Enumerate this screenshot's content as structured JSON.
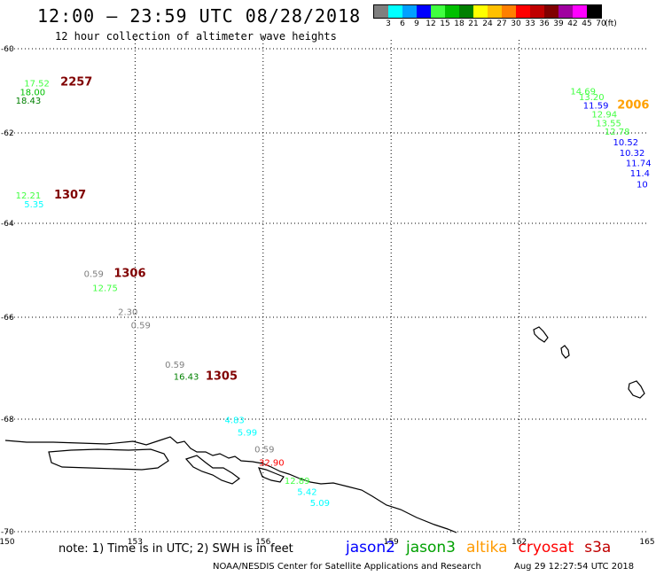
{
  "header": {
    "title": "12:00 — 23:59 UTC 08/28/2018",
    "subtitle": "12 hour collection of altimeter wave heights"
  },
  "legend": {
    "unit": "(ft)",
    "items": [
      {
        "label": "3",
        "color": "#7f7f7f"
      },
      {
        "label": "6",
        "color": "#00ffff"
      },
      {
        "label": "9",
        "color": "#00a0ff"
      },
      {
        "label": "12",
        "color": "#0000ff"
      },
      {
        "label": "15",
        "color": "#40ff40"
      },
      {
        "label": "18",
        "color": "#00c000"
      },
      {
        "label": "21",
        "color": "#008000"
      },
      {
        "label": "24",
        "color": "#ffff00"
      },
      {
        "label": "27",
        "color": "#ffc000"
      },
      {
        "label": "30",
        "color": "#ff8000"
      },
      {
        "label": "33",
        "color": "#ff0000"
      },
      {
        "label": "36",
        "color": "#c00000"
      },
      {
        "label": "39",
        "color": "#800000"
      },
      {
        "label": "42",
        "color": "#a000a0"
      },
      {
        "label": "45",
        "color": "#ff00ff"
      },
      {
        "label": "70",
        "color": "#000000"
      }
    ]
  },
  "axes": {
    "lon_ticks": [
      "150",
      "153",
      "156",
      "159",
      "162",
      "165"
    ],
    "lat_ticks": [
      "-60",
      "-62",
      "-64",
      "-66",
      "-68",
      "-70"
    ]
  },
  "pass_ids": [
    {
      "text": "2257",
      "color": "#800000",
      "lon": 151.25,
      "lat": -60.02
    },
    {
      "text": "1307",
      "color": "#800000",
      "lon": 151.1,
      "lat": -62.55
    },
    {
      "text": "1306",
      "color": "#800000",
      "lon": 152.5,
      "lat": -64.3
    },
    {
      "text": "1305",
      "color": "#800000",
      "lon": 154.65,
      "lat": -66.6
    },
    {
      "text": "2006",
      "color": "#ffa000",
      "lon": 164.3,
      "lat": -60.54
    }
  ],
  "wave_labels": [
    {
      "text": "17.52",
      "color": "#40ff40",
      "lon": 150.4,
      "lat": -60.04
    },
    {
      "text": "18.00",
      "color": "#00c000",
      "lon": 150.3,
      "lat": -60.24
    },
    {
      "text": "18.43",
      "color": "#008000",
      "lon": 150.2,
      "lat": -60.43
    },
    {
      "text": "12.21",
      "color": "#40ff40",
      "lon": 150.2,
      "lat": -62.55
    },
    {
      "text": "5.35",
      "color": "#00ffff",
      "lon": 150.4,
      "lat": -62.75
    },
    {
      "text": "0.59",
      "color": "#7f7f7f",
      "lon": 151.8,
      "lat": -64.3
    },
    {
      "text": "12.75",
      "color": "#40ff40",
      "lon": 152.0,
      "lat": -64.62
    },
    {
      "text": "2.30",
      "color": "#7f7f7f",
      "lon": 152.6,
      "lat": -65.15
    },
    {
      "text": "0.59",
      "color": "#7f7f7f",
      "lon": 152.9,
      "lat": -65.45
    },
    {
      "text": "0.59",
      "color": "#7f7f7f",
      "lon": 153.7,
      "lat": -66.33
    },
    {
      "text": "16.43",
      "color": "#008000",
      "lon": 153.9,
      "lat": -66.6
    },
    {
      "text": "4.83",
      "color": "#00ffff",
      "lon": 155.1,
      "lat": -67.57
    },
    {
      "text": "5.99",
      "color": "#00ffff",
      "lon": 155.4,
      "lat": -67.85
    },
    {
      "text": "0.59",
      "color": "#7f7f7f",
      "lon": 155.8,
      "lat": -68.23
    },
    {
      "text": "32.90",
      "color": "#ff0000",
      "lon": 155.9,
      "lat": -68.52
    },
    {
      "text": "12.89",
      "color": "#40ff40",
      "lon": 156.5,
      "lat": -68.93
    },
    {
      "text": "5.42",
      "color": "#00ffff",
      "lon": 156.8,
      "lat": -69.18
    },
    {
      "text": "5.09",
      "color": "#00ffff",
      "lon": 157.1,
      "lat": -69.43
    },
    {
      "text": "14.69",
      "color": "#40ff40",
      "lon": 163.2,
      "lat": -60.22
    },
    {
      "text": "13.20",
      "color": "#40ff40",
      "lon": 163.4,
      "lat": -60.35
    },
    {
      "text": "11.59",
      "color": "#0000ff",
      "lon": 163.5,
      "lat": -60.54
    },
    {
      "text": "12.94",
      "color": "#40ff40",
      "lon": 163.7,
      "lat": -60.73
    },
    {
      "text": "13.55",
      "color": "#40ff40",
      "lon": 163.8,
      "lat": -60.93
    },
    {
      "text": "12.78",
      "color": "#40ff40",
      "lon": 164.0,
      "lat": -61.12
    },
    {
      "text": "10.52",
      "color": "#0000ff",
      "lon": 164.2,
      "lat": -61.36
    },
    {
      "text": "10.32",
      "color": "#0000ff",
      "lon": 164.35,
      "lat": -61.6
    },
    {
      "text": "11.74",
      "color": "#0000ff",
      "lon": 164.5,
      "lat": -61.82
    },
    {
      "text": "11.4",
      "color": "#0000ff",
      "lon": 164.6,
      "lat": -62.05
    },
    {
      "text": "10",
      "color": "#0000ff",
      "lon": 164.75,
      "lat": -62.3
    }
  ],
  "footer": {
    "note": "note: 1) Time is in UTC; 2) SWH is in feet",
    "satellites": [
      {
        "name": "jason2",
        "color": "#0000ff"
      },
      {
        "name": "jason3",
        "color": "#00a000"
      },
      {
        "name": "altika",
        "color": "#ff9a00"
      },
      {
        "name": "cryosat",
        "color": "#ff0000"
      },
      {
        "name": "s3a",
        "color": "#c00000"
      }
    ],
    "credit": "NOAA/NESDIS Center for Satellite Applications and Research",
    "timestamp": "Aug 29 12:27:54 UTC 2018"
  }
}
